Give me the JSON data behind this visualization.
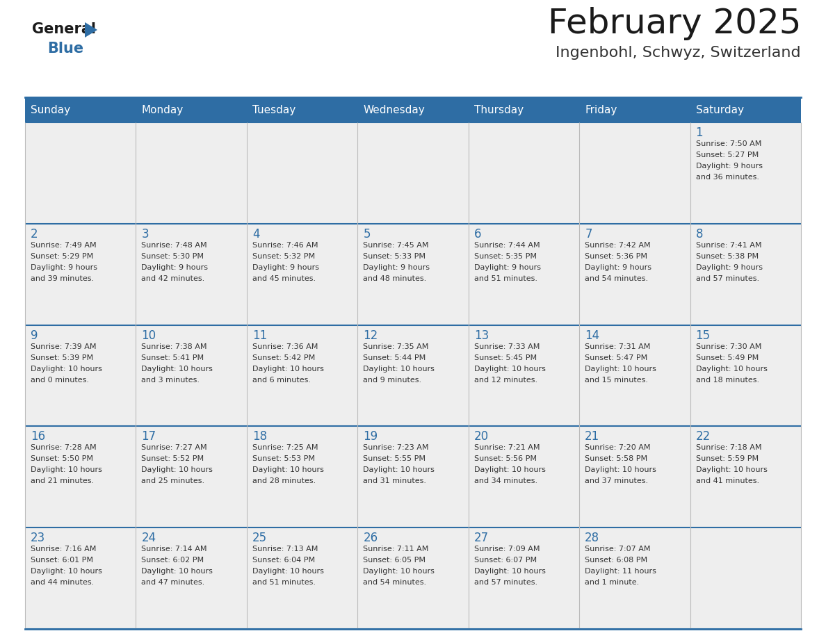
{
  "title": "February 2025",
  "subtitle": "Ingenbohl, Schwyz, Switzerland",
  "header_color": "#2E6DA4",
  "header_text_color": "#FFFFFF",
  "cell_bg_color": "#EEEEEE",
  "alt_cell_bg_color": "#FFFFFF",
  "day_headers": [
    "Sunday",
    "Monday",
    "Tuesday",
    "Wednesday",
    "Thursday",
    "Friday",
    "Saturday"
  ],
  "title_color": "#1a1a1a",
  "subtitle_color": "#333333",
  "day_num_color": "#2E6DA4",
  "cell_text_color": "#333333",
  "line_color": "#2E6DA4",
  "logo_general_color": "#1a1a1a",
  "logo_blue_color": "#2E6DA4",
  "calendar": [
    [
      null,
      null,
      null,
      null,
      null,
      null,
      {
        "day": 1,
        "sunrise": "7:50 AM",
        "sunset": "5:27 PM",
        "daylight": "9 hours\nand 36 minutes."
      }
    ],
    [
      {
        "day": 2,
        "sunrise": "7:49 AM",
        "sunset": "5:29 PM",
        "daylight": "9 hours\nand 39 minutes."
      },
      {
        "day": 3,
        "sunrise": "7:48 AM",
        "sunset": "5:30 PM",
        "daylight": "9 hours\nand 42 minutes."
      },
      {
        "day": 4,
        "sunrise": "7:46 AM",
        "sunset": "5:32 PM",
        "daylight": "9 hours\nand 45 minutes."
      },
      {
        "day": 5,
        "sunrise": "7:45 AM",
        "sunset": "5:33 PM",
        "daylight": "9 hours\nand 48 minutes."
      },
      {
        "day": 6,
        "sunrise": "7:44 AM",
        "sunset": "5:35 PM",
        "daylight": "9 hours\nand 51 minutes."
      },
      {
        "day": 7,
        "sunrise": "7:42 AM",
        "sunset": "5:36 PM",
        "daylight": "9 hours\nand 54 minutes."
      },
      {
        "day": 8,
        "sunrise": "7:41 AM",
        "sunset": "5:38 PM",
        "daylight": "9 hours\nand 57 minutes."
      }
    ],
    [
      {
        "day": 9,
        "sunrise": "7:39 AM",
        "sunset": "5:39 PM",
        "daylight": "10 hours\nand 0 minutes."
      },
      {
        "day": 10,
        "sunrise": "7:38 AM",
        "sunset": "5:41 PM",
        "daylight": "10 hours\nand 3 minutes."
      },
      {
        "day": 11,
        "sunrise": "7:36 AM",
        "sunset": "5:42 PM",
        "daylight": "10 hours\nand 6 minutes."
      },
      {
        "day": 12,
        "sunrise": "7:35 AM",
        "sunset": "5:44 PM",
        "daylight": "10 hours\nand 9 minutes."
      },
      {
        "day": 13,
        "sunrise": "7:33 AM",
        "sunset": "5:45 PM",
        "daylight": "10 hours\nand 12 minutes."
      },
      {
        "day": 14,
        "sunrise": "7:31 AM",
        "sunset": "5:47 PM",
        "daylight": "10 hours\nand 15 minutes."
      },
      {
        "day": 15,
        "sunrise": "7:30 AM",
        "sunset": "5:49 PM",
        "daylight": "10 hours\nand 18 minutes."
      }
    ],
    [
      {
        "day": 16,
        "sunrise": "7:28 AM",
        "sunset": "5:50 PM",
        "daylight": "10 hours\nand 21 minutes."
      },
      {
        "day": 17,
        "sunrise": "7:27 AM",
        "sunset": "5:52 PM",
        "daylight": "10 hours\nand 25 minutes."
      },
      {
        "day": 18,
        "sunrise": "7:25 AM",
        "sunset": "5:53 PM",
        "daylight": "10 hours\nand 28 minutes."
      },
      {
        "day": 19,
        "sunrise": "7:23 AM",
        "sunset": "5:55 PM",
        "daylight": "10 hours\nand 31 minutes."
      },
      {
        "day": 20,
        "sunrise": "7:21 AM",
        "sunset": "5:56 PM",
        "daylight": "10 hours\nand 34 minutes."
      },
      {
        "day": 21,
        "sunrise": "7:20 AM",
        "sunset": "5:58 PM",
        "daylight": "10 hours\nand 37 minutes."
      },
      {
        "day": 22,
        "sunrise": "7:18 AM",
        "sunset": "5:59 PM",
        "daylight": "10 hours\nand 41 minutes."
      }
    ],
    [
      {
        "day": 23,
        "sunrise": "7:16 AM",
        "sunset": "6:01 PM",
        "daylight": "10 hours\nand 44 minutes."
      },
      {
        "day": 24,
        "sunrise": "7:14 AM",
        "sunset": "6:02 PM",
        "daylight": "10 hours\nand 47 minutes."
      },
      {
        "day": 25,
        "sunrise": "7:13 AM",
        "sunset": "6:04 PM",
        "daylight": "10 hours\nand 51 minutes."
      },
      {
        "day": 26,
        "sunrise": "7:11 AM",
        "sunset": "6:05 PM",
        "daylight": "10 hours\nand 54 minutes."
      },
      {
        "day": 27,
        "sunrise": "7:09 AM",
        "sunset": "6:07 PM",
        "daylight": "10 hours\nand 57 minutes."
      },
      {
        "day": 28,
        "sunrise": "7:07 AM",
        "sunset": "6:08 PM",
        "daylight": "11 hours\nand 1 minute."
      },
      null
    ]
  ]
}
